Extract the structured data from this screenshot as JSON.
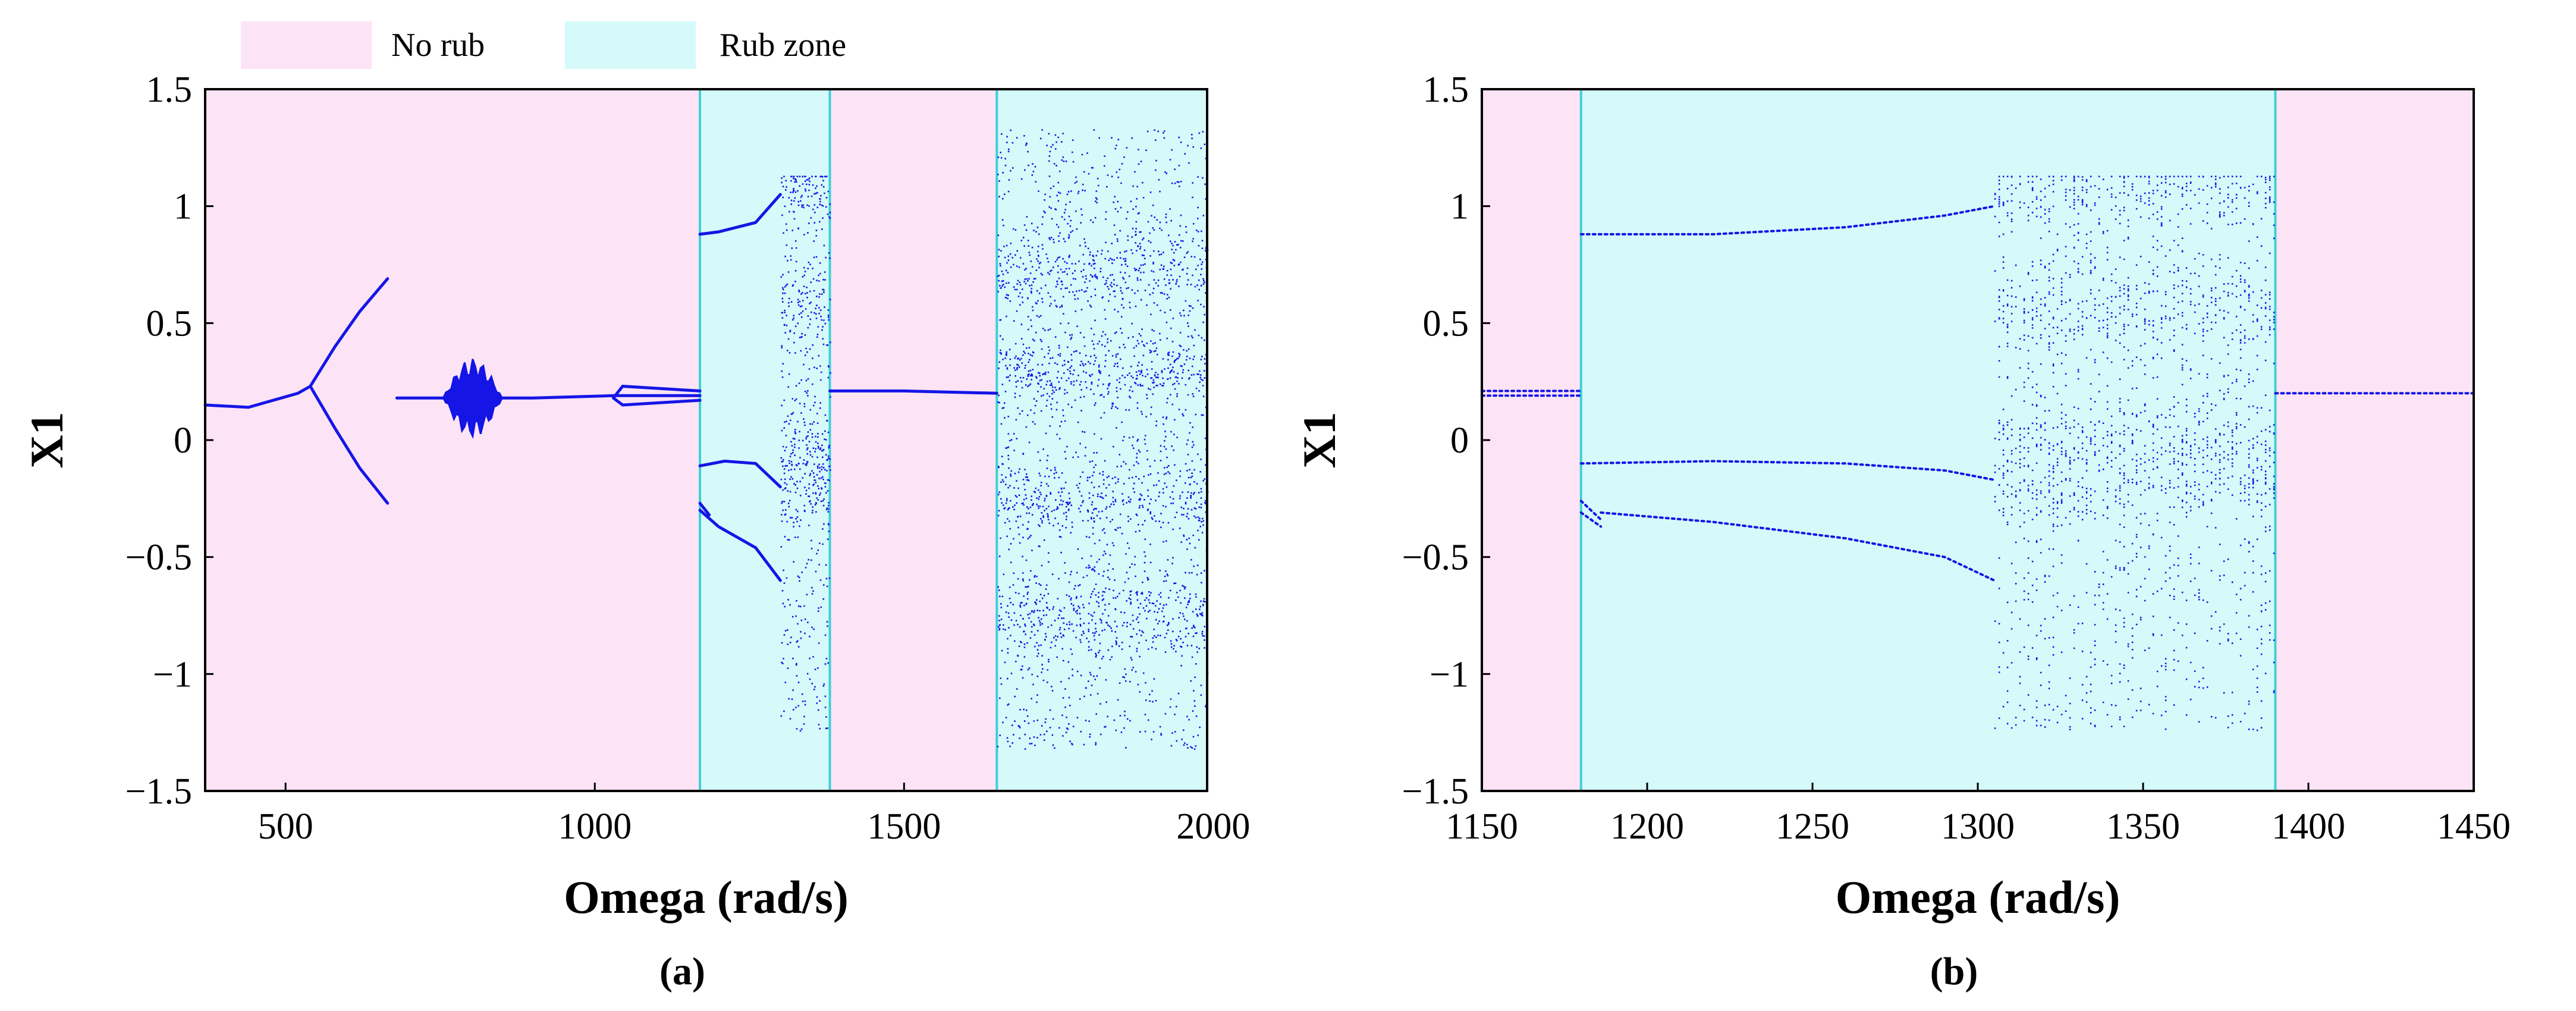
{
  "legend": {
    "no_rub": {
      "label": "No rub",
      "color": "#fce4f6"
    },
    "rub": {
      "label": "Rub zone",
      "color": "#d6fafa"
    }
  },
  "colors": {
    "points": "#1515e6",
    "zone_border": "#3fcfd8",
    "axis": "#000000"
  },
  "chart_data": [
    {
      "id": "a",
      "type": "scatter",
      "caption": "(a)",
      "xlabel": "Omega (rad/s)",
      "ylabel": "X1",
      "xlim": [
        370,
        1990
      ],
      "ylim": [
        -1.5,
        1.5
      ],
      "xticks": [
        500,
        1000,
        1500,
        2000
      ],
      "xtick_labels": [
        "500",
        "1000",
        "1500",
        "2000"
      ],
      "yticks": [
        1.5,
        1,
        0.5,
        0,
        -0.5,
        -1,
        -1.5
      ],
      "ytick_labels": [
        "1.5",
        "1",
        "0.5",
        "0",
        "−0.5",
        "−1",
        "−1.5"
      ],
      "zones": [
        {
          "from": 370,
          "to": 1170,
          "kind": "no_rub"
        },
        {
          "from": 1170,
          "to": 1380,
          "kind": "rub"
        },
        {
          "from": 1380,
          "to": 1650,
          "kind": "no_rub"
        },
        {
          "from": 1650,
          "to": 1990,
          "kind": "rub"
        }
      ],
      "branches": [
        {
          "x": [
            370,
            440,
            520,
            540
          ],
          "y": [
            0.15,
            0.14,
            0.2,
            0.23
          ]
        },
        {
          "x": [
            540,
            580,
            620,
            665
          ],
          "y": [
            0.23,
            0.4,
            0.55,
            0.69
          ]
        },
        {
          "x": [
            540,
            580,
            620,
            665
          ],
          "y": [
            0.23,
            0.05,
            -0.12,
            -0.27
          ]
        },
        {
          "x": [
            680,
            760,
            900,
            1030,
            1170
          ],
          "y": [
            0.18,
            0.18,
            0.18,
            0.19,
            0.19
          ]
        },
        {
          "x": [
            1030,
            1045,
            1170
          ],
          "y": [
            0.18,
            0.23,
            0.21
          ]
        },
        {
          "x": [
            1030,
            1045,
            1170
          ],
          "y": [
            0.18,
            0.15,
            0.17
          ]
        },
        {
          "x": [
            1170,
            1200,
            1260,
            1300
          ],
          "y": [
            0.88,
            0.89,
            0.93,
            1.05
          ]
        },
        {
          "x": [
            1170,
            1210,
            1260,
            1300
          ],
          "y": [
            -0.11,
            -0.09,
            -0.1,
            -0.2
          ]
        },
        {
          "x": [
            1170,
            1200,
            1260,
            1300
          ],
          "y": [
            -0.3,
            -0.37,
            -0.46,
            -0.6
          ]
        },
        {
          "x": [
            1170,
            1185
          ],
          "y": [
            -0.27,
            -0.32
          ]
        },
        {
          "x": [
            1380,
            1500,
            1650
          ],
          "y": [
            0.21,
            0.21,
            0.2
          ]
        }
      ],
      "bubble": {
        "x_from": 755,
        "x_to": 850,
        "y_center": 0.18,
        "half_height": 0.17
      },
      "chaotic_regions": [
        {
          "x_from": 1300,
          "x_to": 1380,
          "y_min": -1.24,
          "y_max": 1.13,
          "bands": [
            1.07,
            0.55,
            -0.21,
            0.0
          ],
          "density": 0.5
        },
        {
          "x_from": 1650,
          "x_to": 1990,
          "y_min": -1.32,
          "y_max": 1.33,
          "bands": [
            0.72,
            -0.75,
            -0.25,
            0.3
          ],
          "density": 1.0
        }
      ]
    },
    {
      "id": "b",
      "type": "scatter",
      "caption": "(b)",
      "xlabel": "Omega (rad/s)",
      "ylabel": "X1",
      "xlim": [
        1150,
        1450
      ],
      "ylim": [
        -1.5,
        1.5
      ],
      "xticks": [
        1150,
        1200,
        1250,
        1300,
        1350,
        1400,
        1450
      ],
      "xtick_labels": [
        "1150",
        "1200",
        "1250",
        "1300",
        "1350",
        "1400",
        "1450"
      ],
      "yticks": [
        1.5,
        1,
        0.5,
        0,
        -0.5,
        -1,
        -1.5
      ],
      "ytick_labels": [
        "1.5",
        "1",
        "0.5",
        "0",
        "−0.5",
        "−1",
        "−1.5"
      ],
      "zones": [
        {
          "from": 1150,
          "to": 1180,
          "kind": "no_rub"
        },
        {
          "from": 1180,
          "to": 1390,
          "kind": "rub"
        },
        {
          "from": 1390,
          "to": 1450,
          "kind": "no_rub"
        }
      ],
      "branches": [
        {
          "x": [
            1150,
            1180
          ],
          "y": [
            0.21,
            0.21
          ]
        },
        {
          "x": [
            1150,
            1180
          ],
          "y": [
            0.19,
            0.19
          ]
        },
        {
          "x": [
            1180,
            1220,
            1260,
            1290,
            1305
          ],
          "y": [
            0.88,
            0.88,
            0.91,
            0.96,
            1.0
          ]
        },
        {
          "x": [
            1180,
            1220,
            1260,
            1290,
            1305
          ],
          "y": [
            -0.1,
            -0.09,
            -0.1,
            -0.13,
            -0.17
          ]
        },
        {
          "x": [
            1180,
            1186
          ],
          "y": [
            -0.26,
            -0.34
          ]
        },
        {
          "x": [
            1180,
            1186
          ],
          "y": [
            -0.31,
            -0.37
          ]
        },
        {
          "x": [
            1186,
            1220,
            1260,
            1290,
            1305
          ],
          "y": [
            -0.31,
            -0.35,
            -0.42,
            -0.5,
            -0.6
          ]
        },
        {
          "x": [
            1390,
            1420,
            1450
          ],
          "y": [
            0.2,
            0.2,
            0.2
          ]
        }
      ],
      "chaotic_regions": [
        {
          "x_from": 1305,
          "x_to": 1390,
          "y_min": -1.24,
          "y_max": 1.13,
          "bands": [
            1.07,
            0.56,
            -0.19,
            0.0
          ],
          "density": 0.45,
          "columns": true
        }
      ]
    }
  ]
}
